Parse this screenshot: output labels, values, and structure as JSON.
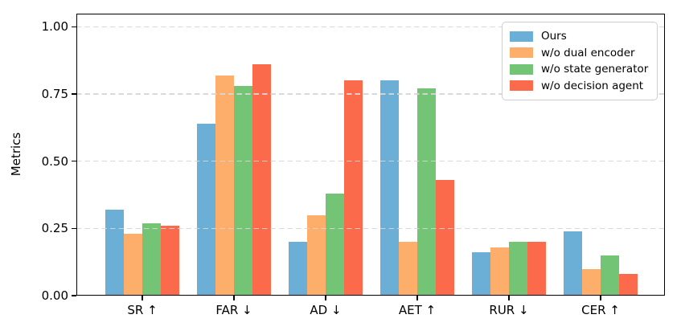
{
  "chart_data": {
    "type": "bar",
    "title": "",
    "ylabel": "Metrics",
    "xlabel": "",
    "ylim": [
      0,
      1.05
    ],
    "grid": {
      "axis": "y",
      "style": "dashed",
      "color": "#d6d6d6",
      "drawn_over_bars": true
    },
    "legend": {
      "position": "upper-right"
    },
    "yticks": [
      {
        "value": 0.0,
        "label": "0.00"
      },
      {
        "value": 0.25,
        "label": "0.25"
      },
      {
        "value": 0.5,
        "label": "0.50"
      },
      {
        "value": 0.75,
        "label": "0.75"
      },
      {
        "value": 1.0,
        "label": "1.00"
      }
    ],
    "categories": [
      "SR ↑",
      "FAR ↓",
      "AD ↓",
      "AET ↑",
      "RUR ↓",
      "CER ↑"
    ],
    "series": [
      {
        "name": "Ours",
        "color": "#6baed6",
        "values": [
          0.32,
          0.64,
          0.2,
          0.8,
          0.16,
          0.24
        ]
      },
      {
        "name": "w/o dual encoder",
        "color": "#fdae6b",
        "values": [
          0.23,
          0.82,
          0.3,
          0.2,
          0.18,
          0.1
        ]
      },
      {
        "name": "w/o state generator",
        "color": "#74c476",
        "values": [
          0.27,
          0.78,
          0.38,
          0.77,
          0.2,
          0.15
        ]
      },
      {
        "name": "w/o decision agent",
        "color": "#fb6a4a",
        "values": [
          0.26,
          0.86,
          0.8,
          0.43,
          0.2,
          0.08
        ]
      }
    ]
  }
}
